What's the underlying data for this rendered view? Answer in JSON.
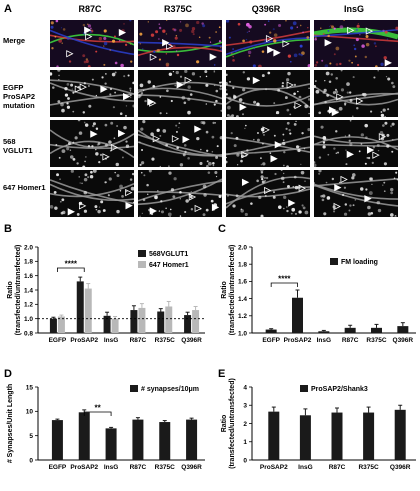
{
  "figure": {
    "panel_a": {
      "letter": "A",
      "columns": [
        "R87C",
        "R375C",
        "Q396R",
        "InsG"
      ],
      "rows": [
        {
          "label": "Merge"
        },
        {
          "label": "EGFP ProSAP2 mutation"
        },
        {
          "label": "568 VGLUT1"
        },
        {
          "label": "647 Homer1"
        }
      ]
    },
    "colors": {
      "black_bar": "#1a1a1a",
      "grey_bar": "#b8b8b8",
      "green_channel": "#3fdc3f",
      "red_channel": "#d23c3c",
      "blue_channel": "#2a3fd0"
    }
  },
  "chart_data": [
    {
      "panel": "B",
      "type": "bar",
      "ylabel": "Ratio (transfected/untransfected)",
      "categories": [
        "EGFP",
        "ProSAP2",
        "InsG",
        "R87C",
        "R375C",
        "Q396R"
      ],
      "series": [
        {
          "name": "568VGLUT1",
          "values": [
            1.0,
            1.52,
            1.04,
            1.12,
            1.1,
            1.05
          ],
          "errors": [
            0.02,
            0.06,
            0.05,
            0.06,
            0.04,
            0.04
          ]
        },
        {
          "name": "647 Homer1",
          "values": [
            1.03,
            1.42,
            1.0,
            1.15,
            1.17,
            1.12
          ],
          "errors": [
            0.02,
            0.07,
            0.03,
            0.06,
            0.07,
            0.05
          ]
        }
      ],
      "ylim": [
        0.8,
        2.0
      ],
      "yticks": [
        "0.8",
        "1.0",
        "1.2",
        "1.4",
        "1.6",
        "1.8",
        "2.0"
      ],
      "annotation": "****",
      "legend_position": "top-right"
    },
    {
      "panel": "C",
      "type": "bar",
      "ylabel": "Ratio (transfected/untransfected)",
      "categories": [
        "EGFP",
        "ProSAP2",
        "InsG",
        "R87C",
        "R375C",
        "Q396R"
      ],
      "series": [
        {
          "name": "FM loading",
          "values": [
            1.04,
            1.41,
            1.02,
            1.06,
            1.06,
            1.08
          ],
          "errors": [
            0.01,
            0.09,
            0.01,
            0.03,
            0.04,
            0.04
          ]
        }
      ],
      "ylim": [
        1.0,
        2.0
      ],
      "yticks": [
        "1.0",
        "1.2",
        "1.4",
        "1.6",
        "1.8",
        "2.0"
      ],
      "annotation": "****",
      "legend_position": "top-right"
    },
    {
      "panel": "D",
      "type": "bar",
      "ylabel": "# Synapses/Unit Length",
      "categories": [
        "EGFP",
        "ProSAP2",
        "InsG",
        "R87C",
        "R375C",
        "Q396R"
      ],
      "series": [
        {
          "name": "# synapses/10μm",
          "values": [
            8.2,
            9.8,
            6.5,
            8.3,
            7.8,
            8.3
          ],
          "errors": [
            0.2,
            0.5,
            0.2,
            0.4,
            0.3,
            0.3
          ]
        }
      ],
      "ylim": [
        0,
        15
      ],
      "yticks": [
        "0",
        "5",
        "10",
        "15"
      ],
      "annotation": "**",
      "legend_position": "top-right"
    },
    {
      "panel": "E",
      "type": "bar",
      "ylabel": "Ratio (transfected/untransfected)",
      "categories": [
        "ProSAP2",
        "InsG",
        "R87C",
        "R375C",
        "Q396R"
      ],
      "series": [
        {
          "name": "ProSAP2/Shank3",
          "values": [
            2.65,
            2.45,
            2.6,
            2.6,
            2.75
          ],
          "errors": [
            0.25,
            0.35,
            0.25,
            0.3,
            0.25
          ]
        }
      ],
      "ylim": [
        0,
        4
      ],
      "yticks": [
        "0",
        "1",
        "2",
        "3",
        "4"
      ],
      "legend_position": "top"
    }
  ]
}
